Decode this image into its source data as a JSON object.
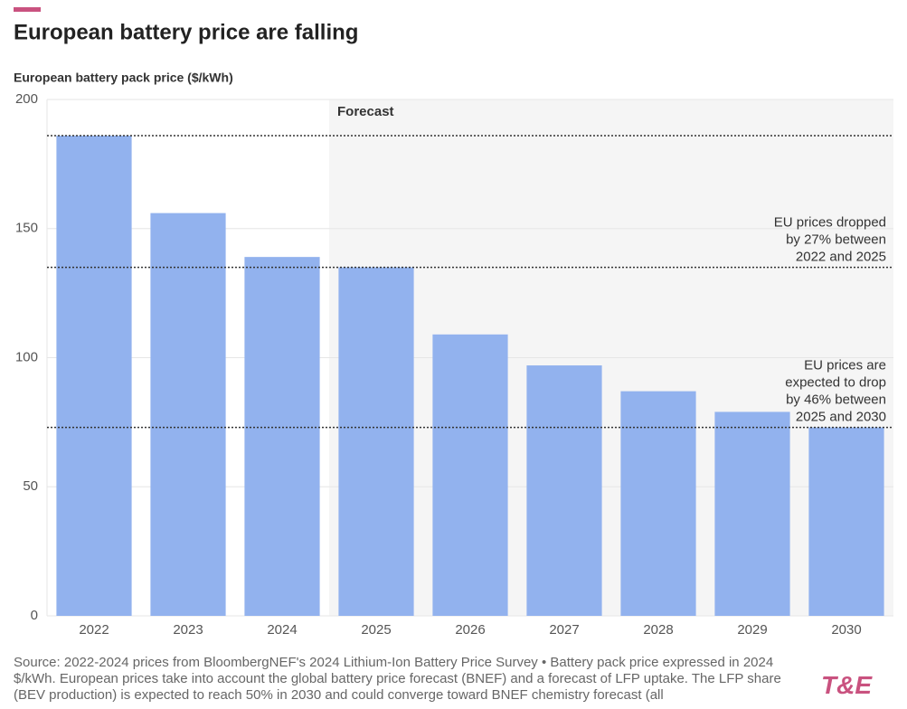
{
  "chart_data": {
    "type": "bar",
    "title": "European battery price are falling",
    "y_axis_label": "European battery pack price ($/kWh)",
    "categories": [
      "2022",
      "2023",
      "2024",
      "2025",
      "2026",
      "2027",
      "2028",
      "2029",
      "2030"
    ],
    "values": [
      186,
      156,
      139,
      135,
      109,
      97,
      87,
      79,
      73
    ],
    "color": "#92b2ee",
    "ylim": [
      0,
      200
    ],
    "yticks": [
      0,
      50,
      100,
      150,
      200
    ],
    "grid": true,
    "forecast_label": "Forecast",
    "forecast_from": "2025",
    "reference_lines": [
      {
        "value": 186
      },
      {
        "value": 135,
        "label": [
          "EU prices dropped",
          "by 27% between",
          "2022 and 2025"
        ]
      },
      {
        "value": 73,
        "label": [
          "EU prices are",
          "expected to drop",
          "by 46% between",
          "2025 and 2030"
        ]
      }
    ],
    "source": "Source: 2022-2024 prices from BloombergNEF's 2024 Lithium-Ion Battery Price Survey • Battery pack price expressed in 2024 $/kWh. European prices take into account the global battery price forecast (BNEF) and a forecast of LFP uptake. The LFP share (BEV production) is expected to reach 50% in 2030 and could converge toward BNEF chemistry forecast (all",
    "logo": "T&E"
  }
}
